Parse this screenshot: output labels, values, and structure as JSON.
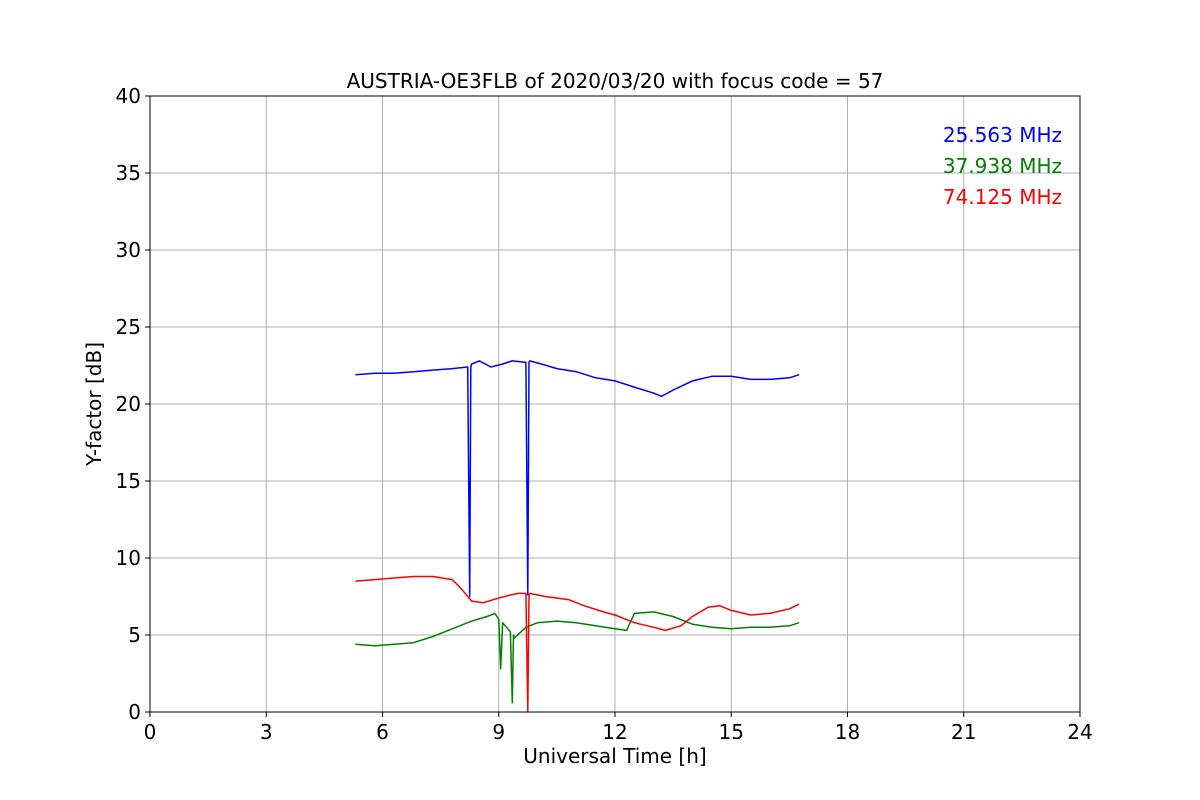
{
  "chart_data": {
    "type": "line",
    "title": "AUSTRIA-OE3FLB of 2020/03/20 with focus code = 57",
    "xlabel": "Universal Time [h]",
    "ylabel": "Y-factor [dB]",
    "xlim": [
      0,
      24
    ],
    "ylim": [
      0,
      40
    ],
    "xticks": [
      0,
      3,
      6,
      9,
      12,
      15,
      18,
      21,
      24
    ],
    "yticks": [
      0,
      5,
      10,
      15,
      20,
      25,
      30,
      35,
      40
    ],
    "grid": true,
    "legend_position": "top-right",
    "series": [
      {
        "name": "25.563 MHz",
        "color": "#0000ff",
        "x": [
          5.3,
          5.8,
          6.3,
          6.8,
          7.3,
          7.8,
          8.2,
          8.25,
          8.28,
          8.3,
          8.5,
          8.8,
          9.1,
          9.35,
          9.7,
          9.75,
          9.78,
          9.8,
          10.1,
          10.5,
          11.0,
          11.5,
          12.0,
          12.5,
          13.0,
          13.2,
          13.5,
          14.0,
          14.5,
          15.0,
          15.5,
          16.0,
          16.5,
          16.75
        ],
        "y": [
          21.9,
          22.0,
          22.0,
          22.1,
          22.2,
          22.3,
          22.4,
          7.5,
          22.4,
          22.6,
          22.8,
          22.4,
          22.6,
          22.8,
          22.7,
          7.6,
          22.7,
          22.8,
          22.6,
          22.3,
          22.1,
          21.7,
          21.5,
          21.1,
          20.7,
          20.5,
          20.9,
          21.5,
          21.8,
          21.8,
          21.6,
          21.6,
          21.7,
          21.9
        ]
      },
      {
        "name": "37.938 MHz",
        "color": "#008000",
        "x": [
          5.3,
          5.8,
          6.3,
          6.8,
          7.3,
          7.8,
          8.3,
          8.7,
          8.9,
          9.0,
          9.05,
          9.1,
          9.3,
          9.35,
          9.38,
          9.4,
          9.7,
          10.0,
          10.5,
          11.0,
          11.5,
          12.0,
          12.3,
          12.5,
          13.0,
          13.5,
          14.0,
          14.5,
          15.0,
          15.5,
          16.0,
          16.5,
          16.75
        ],
        "y": [
          4.4,
          4.3,
          4.4,
          4.5,
          4.9,
          5.4,
          5.9,
          6.2,
          6.4,
          6.0,
          2.8,
          5.8,
          5.2,
          0.6,
          5.0,
          4.8,
          5.5,
          5.8,
          5.9,
          5.8,
          5.6,
          5.4,
          5.3,
          6.4,
          6.5,
          6.2,
          5.7,
          5.5,
          5.4,
          5.5,
          5.5,
          5.6,
          5.8
        ]
      },
      {
        "name": "74.125 MHz",
        "color": "#ff0000",
        "x": [
          5.3,
          5.8,
          6.3,
          6.8,
          7.3,
          7.8,
          8.0,
          8.3,
          8.6,
          9.0,
          9.3,
          9.5,
          9.7,
          9.75,
          9.78,
          9.8,
          10.2,
          10.8,
          11.2,
          11.7,
          12.0,
          12.5,
          13.0,
          13.3,
          13.7,
          14.0,
          14.4,
          14.7,
          15.0,
          15.5,
          16.0,
          16.5,
          16.75
        ],
        "y": [
          8.5,
          8.6,
          8.7,
          8.8,
          8.8,
          8.6,
          8.1,
          7.2,
          7.1,
          7.4,
          7.6,
          7.7,
          7.7,
          0.0,
          7.6,
          7.7,
          7.5,
          7.3,
          6.9,
          6.5,
          6.3,
          5.8,
          5.5,
          5.3,
          5.6,
          6.2,
          6.8,
          6.9,
          6.6,
          6.3,
          6.4,
          6.7,
          7.0
        ]
      }
    ]
  }
}
